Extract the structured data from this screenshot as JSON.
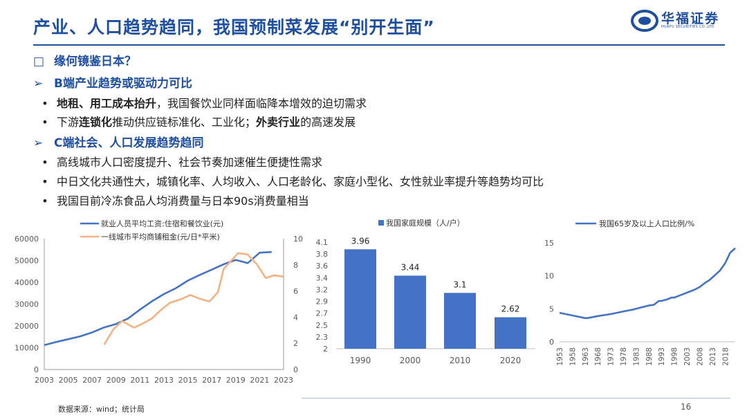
{
  "header": {
    "title": "产业、人口趋势趋同，我国预制菜发展“别开生面”",
    "logo_name": "华福证券",
    "logo_sub": "HUAFU SECURITIES CO.,LTD"
  },
  "content": {
    "q_marker": "□",
    "q_text": "缘何镜鉴日本？",
    "arrow": "➢",
    "bullet": "•",
    "b_head": "B端产业趋势或驱动力可比",
    "b1_hl": "地租、用工成本抬升",
    "b1_rest": "，我国餐饮业同样面临降本增效的迫切需求",
    "b2_pre": "下游",
    "b2_hl1": "连锁化",
    "b2_mid": "推动供应链标准化、工业化；",
    "b2_hl2": "外卖行业",
    "b2_post": "的高速发展",
    "c_head": "C端社会、人口发展趋势趋同",
    "c1": "高线城市人口密度提升、社会节奏加速催生便捷性需求",
    "c2": "中日文化共通性大，城镇化率、人均收入、人口老龄化、家庭小型化、女性就业率提升等趋势均可比",
    "c3": "我国目前冷冻食品人均消费量与日本90s消费量相当"
  },
  "footer": {
    "source": "数据来源：wind；统计局",
    "page": "16"
  },
  "colors": {
    "blue": "#4472c4",
    "orange": "#f4b183",
    "title": "#1f4fa0"
  },
  "chart_data": [
    {
      "type": "line",
      "title": "",
      "x": [
        2003,
        2004,
        2005,
        2006,
        2007,
        2008,
        2009,
        2010,
        2011,
        2012,
        2013,
        2014,
        2015,
        2016,
        2017,
        2018,
        2019,
        2020,
        2021,
        2022
      ],
      "x_ticks": [
        "2003",
        "2005",
        "2007",
        "2009",
        "2011",
        "2013",
        "2015",
        "2017",
        "2019",
        "2021",
        "2023"
      ],
      "y_ticks_left": [
        "0",
        "10000",
        "20000",
        "30000",
        "40000",
        "50000",
        "60000"
      ],
      "y_ticks_right": [
        "0",
        "2",
        "4",
        "6",
        "8",
        "10"
      ],
      "ylim_left": [
        0,
        60000
      ],
      "ylim_right": [
        0,
        10
      ],
      "series": [
        {
          "name": "就业人员平均工资:住宿和餐饮业(元)",
          "axis": "left",
          "x": [
            2003,
            2004,
            2005,
            2006,
            2007,
            2008,
            2009,
            2010,
            2011,
            2012,
            2013,
            2014,
            2015,
            2016,
            2017,
            2018,
            2019,
            2020,
            2021,
            2022
          ],
          "values": [
            11200,
            12600,
            13900,
            15200,
            17000,
            19300,
            20900,
            23400,
            27500,
            31300,
            34600,
            37300,
            40800,
            43400,
            45800,
            48300,
            50300,
            48800,
            53600,
            53900
          ]
        },
        {
          "name": "一线城市平均商铺租金(元/日*平米)",
          "axis": "right",
          "x": [
            2008,
            2008.8,
            2009.5,
            2010.5,
            2011.2,
            2012,
            2012.8,
            2013.5,
            2014.5,
            2015.2,
            2016,
            2016.8,
            2017.5,
            2018,
            2018.5,
            2019.2,
            2020,
            2020.8,
            2021.5,
            2022.2,
            2023
          ],
          "values": [
            1.9,
            3.1,
            3.7,
            3.2,
            3.5,
            3.9,
            4.6,
            5.1,
            5.4,
            5.7,
            5.4,
            5.2,
            5.9,
            7.7,
            8.2,
            8.9,
            8.8,
            8.0,
            7.0,
            7.2,
            7.1
          ]
        }
      ]
    },
    {
      "type": "bar",
      "title": "",
      "legend": "我国家庭规模（人/户）",
      "categories": [
        "1990",
        "2000",
        "2010",
        "2020"
      ],
      "values": [
        3.96,
        3.44,
        3.1,
        2.62
      ],
      "labels": [
        "3.96",
        "3.44",
        "3.1",
        "2.62"
      ],
      "y_ticks": [
        "2",
        "2.3",
        "2.5",
        "2.7",
        "2.9",
        "3.2",
        "3.4",
        "3.6",
        "3.8",
        "4.1"
      ],
      "ylim": [
        2,
        4.1
      ]
    },
    {
      "type": "line",
      "title": "",
      "series": [
        {
          "name": "我国65岁及以上人口比例/%",
          "x": [
            1953,
            1958,
            1963,
            1964,
            1968,
            1973,
            1978,
            1982,
            1985,
            1988,
            1990,
            1992,
            1993,
            1995,
            1997,
            1998,
            2000,
            2002,
            2004,
            2006,
            2008,
            2010,
            2012,
            2014,
            2016,
            2018,
            2020,
            2022
          ],
          "values": [
            4.4,
            4.0,
            3.6,
            3.6,
            3.9,
            4.2,
            4.6,
            4.9,
            5.2,
            5.5,
            5.6,
            6.2,
            6.2,
            6.4,
            6.7,
            6.7,
            7.0,
            7.3,
            7.6,
            7.9,
            8.3,
            8.9,
            9.4,
            10.1,
            10.8,
            11.9,
            13.5,
            14.2
          ]
        }
      ],
      "x_ticks": [
        "1953",
        "1958",
        "1963",
        "1968",
        "1973",
        "1978",
        "1983",
        "1988",
        "1993",
        "1998",
        "2003",
        "2008",
        "2013",
        "2018"
      ],
      "y_ticks": [
        "0",
        "5",
        "10",
        "15"
      ],
      "ylim": [
        0,
        15
      ],
      "xlim": [
        1953,
        2022
      ]
    }
  ]
}
